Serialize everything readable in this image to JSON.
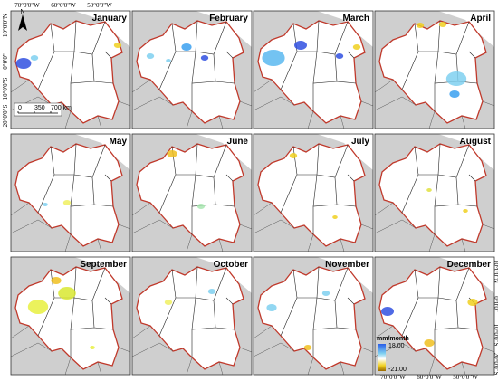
{
  "top_axis_labels": [
    "70°0'0\"W",
    "60°0'0\"W",
    "50°0'0\"W"
  ],
  "left_axis_labels": [
    "10°0'0\"N",
    "0°0'0\"",
    "10°0'0\"S",
    "20°0'0\"S"
  ],
  "right_axis_labels": [
    "10°0'0\"N",
    "0°0'0\"",
    "10°0'0\"S",
    "20°0'0\"S"
  ],
  "bottom_axis_labels": [
    "70°0'0\"W",
    "60°0'0\"W",
    "50°0'0\"W"
  ],
  "panels": [
    {
      "month": "January"
    },
    {
      "month": "February"
    },
    {
      "month": "March"
    },
    {
      "month": "April"
    },
    {
      "month": "May"
    },
    {
      "month": "June"
    },
    {
      "month": "July"
    },
    {
      "month": "August"
    },
    {
      "month": "September"
    },
    {
      "month": "October"
    },
    {
      "month": "November"
    },
    {
      "month": "December"
    }
  ],
  "north_arrow": "N",
  "scale_bar": {
    "labels": [
      "0",
      "350",
      "700 km"
    ]
  },
  "legend": {
    "title": "mm/month",
    "max": "18.00",
    "min": "-21.00"
  }
}
